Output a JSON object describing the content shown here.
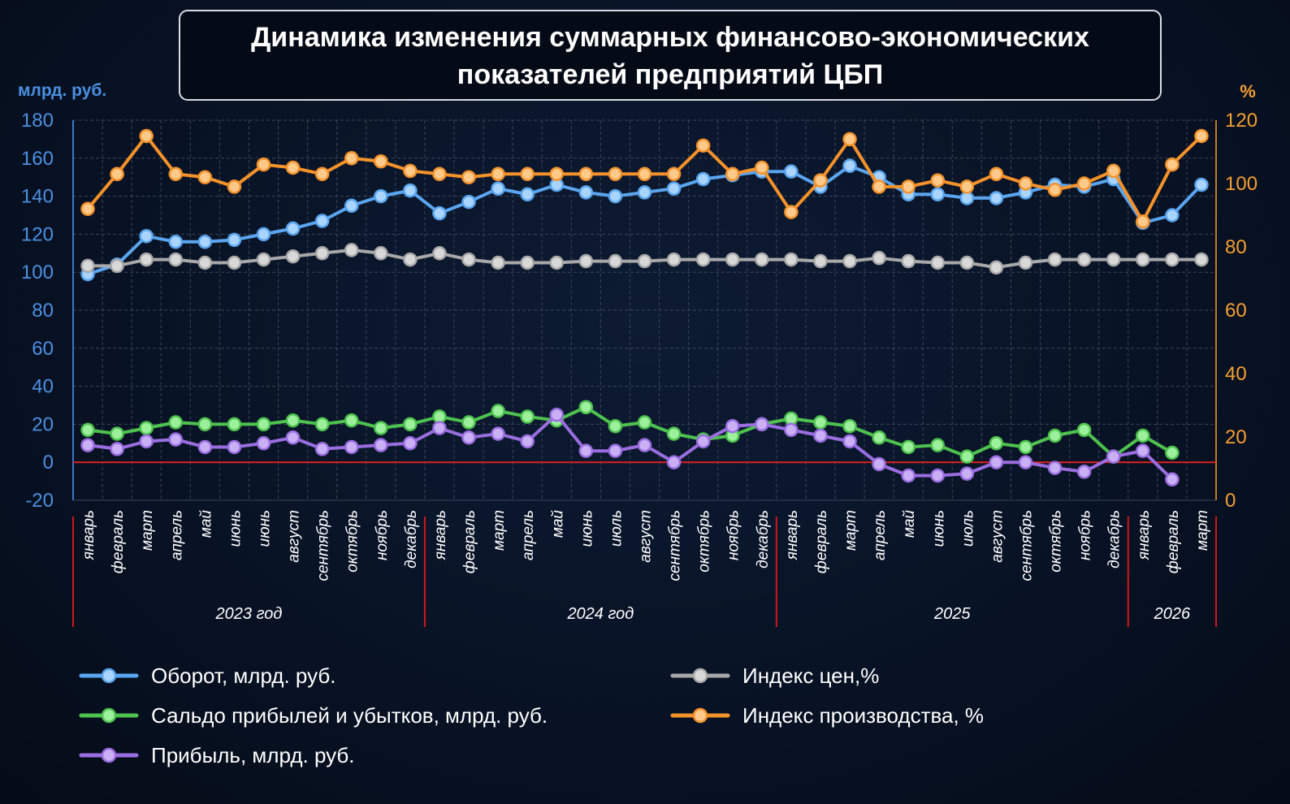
{
  "title": {
    "line1": "Динамика изменения суммарных финансово-экономических",
    "line2": "показателей предприятий  ЦБП"
  },
  "colors": {
    "background": "#081224",
    "grid": "#3a4658",
    "zero_line": "#e02020",
    "left_axis": "#4a90e2",
    "right_axis": "#f5a030"
  },
  "chart_data": {
    "type": "line",
    "y_left": {
      "label": "млрд. руб.",
      "range": [
        -20,
        180
      ],
      "ticks": [
        -20,
        0,
        20,
        40,
        60,
        80,
        100,
        120,
        140,
        160,
        180
      ]
    },
    "y_right": {
      "label": "%",
      "range": [
        0,
        120
      ],
      "ticks": [
        0,
        20,
        40,
        60,
        80,
        100,
        120
      ]
    },
    "grid": true,
    "legend_position": "bottom",
    "categories": [
      "январь",
      "февраль",
      "март",
      "апрель",
      "май",
      "июнь",
      "июнь",
      "август",
      "сентябрь",
      "октябрь",
      "ноябрь",
      "декабрь",
      "январь",
      "февраль",
      "март",
      "апрель",
      "май",
      "июнь",
      "июль",
      "август",
      "сентябрь",
      "октябрь",
      "ноябрь",
      "декабрь",
      "январь",
      "февраль",
      "март",
      "апрель",
      "май",
      "июнь",
      "июль",
      "август",
      "сентябрь",
      "октябрь",
      "ноябрь",
      "декабрь",
      "январь",
      "февраль",
      "март"
    ],
    "year_groups": [
      {
        "label": "2023 год",
        "count": 12
      },
      {
        "label": "2024 год",
        "count": 12
      },
      {
        "label": "2025",
        "count": 12
      },
      {
        "label": "2026",
        "count": 3
      }
    ],
    "series": [
      {
        "name": "Оборот, млрд. руб.",
        "axis": "left",
        "color": "#5aa5ef",
        "marker_fill": "#a8d4ff",
        "values": [
          99,
          104,
          119,
          116,
          116,
          117,
          120,
          123,
          127,
          135,
          140,
          143,
          131,
          137,
          144,
          141,
          146,
          142,
          140,
          142,
          144,
          149,
          151,
          153,
          153,
          145,
          156,
          150,
          141,
          141,
          139,
          139,
          142,
          146,
          145,
          149,
          126,
          130,
          146
        ]
      },
      {
        "name": "Индекс цен,%",
        "axis": "right",
        "color": "#a8a8a8",
        "marker_fill": "#d8d8d8",
        "values": [
          74,
          74,
          76,
          76,
          75,
          75,
          76,
          77,
          78,
          79,
          78,
          76,
          78,
          76,
          75,
          75,
          75,
          75.5,
          75.5,
          75.5,
          76,
          76,
          76,
          76,
          76,
          75.5,
          75.5,
          76.5,
          75.5,
          75,
          75,
          73.5,
          75,
          76,
          76,
          76,
          76,
          76,
          76
        ]
      },
      {
        "name": "Сальдо прибылей и убытков, млрд. руб.",
        "axis": "left",
        "color": "#4ec24e",
        "marker_fill": "#9cf09c",
        "values": [
          17,
          15,
          18,
          21,
          20,
          20,
          20,
          22,
          20,
          22,
          18,
          20,
          24,
          21,
          27,
          24,
          22,
          29,
          19,
          21,
          15,
          12,
          14,
          20,
          23,
          21,
          19,
          13,
          8,
          9,
          3,
          10,
          8,
          14,
          17,
          3,
          14,
          5,
          null
        ]
      },
      {
        "name": "Индекс производства, %",
        "axis": "right",
        "color": "#f5922a",
        "marker_fill": "#ffc98a",
        "values": [
          92,
          103,
          115,
          103,
          102,
          99,
          106,
          105,
          103,
          108,
          107,
          104,
          103,
          102,
          103,
          103,
          103,
          103,
          103,
          103,
          103,
          112,
          103,
          105,
          91,
          101,
          114,
          99,
          99,
          101,
          99,
          103,
          100,
          98,
          100,
          104,
          88,
          106,
          115
        ]
      },
      {
        "name": "Прибыль, млрд. руб.",
        "axis": "left",
        "color": "#9a6ee0",
        "marker_fill": "#c9b0f5",
        "values": [
          9,
          7,
          11,
          12,
          8,
          8,
          10,
          13,
          7,
          8,
          9,
          10,
          18,
          13,
          15,
          11,
          25,
          6,
          6,
          9,
          0,
          11,
          19,
          20,
          17,
          14,
          11,
          -1,
          -7,
          -7,
          -6,
          0,
          0,
          -3,
          -5,
          3,
          6,
          -9,
          null
        ]
      }
    ]
  },
  "legend": [
    {
      "label": "Оборот, млрд. руб.",
      "color": "#5aa5ef",
      "marker_fill": "#a8d4ff"
    },
    {
      "label": "Индекс цен,%",
      "color": "#a8a8a8",
      "marker_fill": "#d8d8d8"
    },
    {
      "label": "Сальдо прибылей и убытков, млрд. руб.",
      "color": "#4ec24e",
      "marker_fill": "#9cf09c"
    },
    {
      "label": "Индекс производства, %",
      "color": "#f5922a",
      "marker_fill": "#ffc98a"
    },
    {
      "label": "Прибыль, млрд. руб.",
      "color": "#9a6ee0",
      "marker_fill": "#c9b0f5"
    }
  ]
}
